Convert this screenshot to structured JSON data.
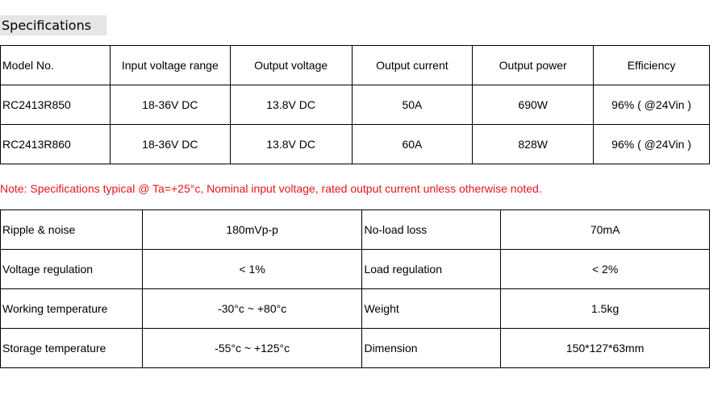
{
  "title": "Specifications",
  "spec_table": {
    "headers": [
      "Model No.",
      "Input voltage range",
      "Output voltage",
      "Output current",
      "Output power",
      "Efficiency"
    ],
    "rows": [
      [
        "RC2413R850",
        "18-36V DC",
        "13.8V DC",
        "50A",
        "690W",
        "96% ( @24Vin )"
      ],
      [
        "RC2413R860",
        "18-36V DC",
        "13.8V DC",
        "60A",
        "828W",
        "96% ( @24Vin )"
      ]
    ]
  },
  "note": "Note: Specifications typical @ Ta=+25°c, Nominal input voltage, rated output current unless otherwise noted.",
  "note_color": "#e8151b",
  "params_table": {
    "rows": [
      [
        "Ripple & noise",
        "180mVp-p",
        "No-load loss",
        "70mA"
      ],
      [
        "Voltage regulation",
        "< 1%",
        "Load regulation",
        "< 2%"
      ],
      [
        "Working temperature",
        "-30°c ~ +80°c",
        "Weight",
        "1.5kg"
      ],
      [
        "Storage temperature",
        "-55°c ~ +125°c",
        "Dimension",
        "150*127*63mm"
      ]
    ]
  }
}
